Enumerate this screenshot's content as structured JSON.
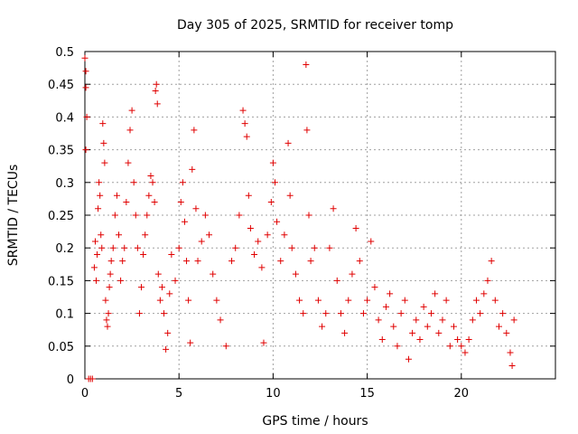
{
  "chart_data": {
    "type": "scatter",
    "title": "Day 305 of 2025, SRMTID for receiver tomp",
    "xlabel": "GPS time / hours",
    "ylabel": "SRMTID / TECUs",
    "xlim": [
      0,
      25
    ],
    "ylim": [
      0,
      0.5
    ],
    "xticks": [
      0,
      5,
      10,
      15,
      20
    ],
    "yticks": [
      0,
      0.05,
      0.1,
      0.15,
      0.2,
      0.25,
      0.3,
      0.35,
      0.4,
      0.45,
      0.5
    ],
    "xtick_labels": [
      "0",
      "5",
      "10",
      "15",
      "20"
    ],
    "ytick_labels": [
      "0",
      "0.05",
      "0.1",
      "0.15",
      "0.2",
      "0.25",
      "0.3",
      "0.35",
      "0.4",
      "0.45",
      "0.5"
    ],
    "grid": true,
    "marker": "+",
    "marker_color": "#e00000",
    "series": [
      {
        "name": "SRMTID",
        "points": [
          [
            0.0,
            0.49
          ],
          [
            0.05,
            0.47
          ],
          [
            0.05,
            0.445
          ],
          [
            0.1,
            0.4
          ],
          [
            0.05,
            0.35
          ],
          [
            0.2,
            0.0
          ],
          [
            0.3,
            0.0
          ],
          [
            0.4,
            0.0
          ],
          [
            0.5,
            0.17
          ],
          [
            0.55,
            0.21
          ],
          [
            0.6,
            0.15
          ],
          [
            0.65,
            0.19
          ],
          [
            0.7,
            0.26
          ],
          [
            0.75,
            0.3
          ],
          [
            0.8,
            0.28
          ],
          [
            0.85,
            0.22
          ],
          [
            0.9,
            0.2
          ],
          [
            0.95,
            0.39
          ],
          [
            1.0,
            0.36
          ],
          [
            1.05,
            0.33
          ],
          [
            1.1,
            0.12
          ],
          [
            1.15,
            0.09
          ],
          [
            1.2,
            0.08
          ],
          [
            1.25,
            0.1
          ],
          [
            1.3,
            0.14
          ],
          [
            1.35,
            0.16
          ],
          [
            1.4,
            0.18
          ],
          [
            1.5,
            0.2
          ],
          [
            1.6,
            0.25
          ],
          [
            1.7,
            0.28
          ],
          [
            1.8,
            0.22
          ],
          [
            1.9,
            0.15
          ],
          [
            2.0,
            0.18
          ],
          [
            2.1,
            0.2
          ],
          [
            2.2,
            0.27
          ],
          [
            2.3,
            0.33
          ],
          [
            2.4,
            0.38
          ],
          [
            2.5,
            0.41
          ],
          [
            2.6,
            0.3
          ],
          [
            2.7,
            0.25
          ],
          [
            2.8,
            0.2
          ],
          [
            2.9,
            0.1
          ],
          [
            3.0,
            0.14
          ],
          [
            3.1,
            0.19
          ],
          [
            3.2,
            0.22
          ],
          [
            3.3,
            0.25
          ],
          [
            3.4,
            0.28
          ],
          [
            3.5,
            0.31
          ],
          [
            3.6,
            0.3
          ],
          [
            3.7,
            0.27
          ],
          [
            3.75,
            0.44
          ],
          [
            3.8,
            0.45
          ],
          [
            3.85,
            0.42
          ],
          [
            3.9,
            0.16
          ],
          [
            4.0,
            0.12
          ],
          [
            4.1,
            0.14
          ],
          [
            4.2,
            0.1
          ],
          [
            4.3,
            0.045
          ],
          [
            4.4,
            0.07
          ],
          [
            4.5,
            0.13
          ],
          [
            4.6,
            0.19
          ],
          [
            4.8,
            0.15
          ],
          [
            5.0,
            0.2
          ],
          [
            5.1,
            0.27
          ],
          [
            5.2,
            0.3
          ],
          [
            5.3,
            0.24
          ],
          [
            5.4,
            0.18
          ],
          [
            5.5,
            0.12
          ],
          [
            5.6,
            0.055
          ],
          [
            5.7,
            0.32
          ],
          [
            5.8,
            0.38
          ],
          [
            5.9,
            0.26
          ],
          [
            6.0,
            0.18
          ],
          [
            6.2,
            0.21
          ],
          [
            6.4,
            0.25
          ],
          [
            6.6,
            0.22
          ],
          [
            6.8,
            0.16
          ],
          [
            7.0,
            0.12
          ],
          [
            7.2,
            0.09
          ],
          [
            7.5,
            0.05
          ],
          [
            7.8,
            0.18
          ],
          [
            8.0,
            0.2
          ],
          [
            8.2,
            0.25
          ],
          [
            8.4,
            0.41
          ],
          [
            8.5,
            0.39
          ],
          [
            8.6,
            0.37
          ],
          [
            8.7,
            0.28
          ],
          [
            8.8,
            0.23
          ],
          [
            9.0,
            0.19
          ],
          [
            9.2,
            0.21
          ],
          [
            9.4,
            0.17
          ],
          [
            9.5,
            0.055
          ],
          [
            9.7,
            0.22
          ],
          [
            9.9,
            0.27
          ],
          [
            10.0,
            0.33
          ],
          [
            10.1,
            0.3
          ],
          [
            10.2,
            0.24
          ],
          [
            10.4,
            0.18
          ],
          [
            10.6,
            0.22
          ],
          [
            10.8,
            0.36
          ],
          [
            10.9,
            0.28
          ],
          [
            11.0,
            0.2
          ],
          [
            11.2,
            0.16
          ],
          [
            11.4,
            0.12
          ],
          [
            11.6,
            0.1
          ],
          [
            11.75,
            0.48
          ],
          [
            11.8,
            0.38
          ],
          [
            11.9,
            0.25
          ],
          [
            12.0,
            0.18
          ],
          [
            12.2,
            0.2
          ],
          [
            12.4,
            0.12
          ],
          [
            12.6,
            0.08
          ],
          [
            12.8,
            0.1
          ],
          [
            13.0,
            0.2
          ],
          [
            13.2,
            0.26
          ],
          [
            13.4,
            0.15
          ],
          [
            13.6,
            0.1
          ],
          [
            13.8,
            0.07
          ],
          [
            14.0,
            0.12
          ],
          [
            14.2,
            0.16
          ],
          [
            14.4,
            0.23
          ],
          [
            14.6,
            0.18
          ],
          [
            14.8,
            0.1
          ],
          [
            15.0,
            0.12
          ],
          [
            15.2,
            0.21
          ],
          [
            15.4,
            0.14
          ],
          [
            15.6,
            0.09
          ],
          [
            15.8,
            0.06
          ],
          [
            16.0,
            0.11
          ],
          [
            16.2,
            0.13
          ],
          [
            16.4,
            0.08
          ],
          [
            16.6,
            0.05
          ],
          [
            16.8,
            0.1
          ],
          [
            17.0,
            0.12
          ],
          [
            17.2,
            0.03
          ],
          [
            17.4,
            0.07
          ],
          [
            17.6,
            0.09
          ],
          [
            17.8,
            0.06
          ],
          [
            18.0,
            0.11
          ],
          [
            18.2,
            0.08
          ],
          [
            18.4,
            0.1
          ],
          [
            18.6,
            0.13
          ],
          [
            18.8,
            0.07
          ],
          [
            19.0,
            0.09
          ],
          [
            19.2,
            0.12
          ],
          [
            19.4,
            0.05
          ],
          [
            19.6,
            0.08
          ],
          [
            19.8,
            0.06
          ],
          [
            20.0,
            0.05
          ],
          [
            20.2,
            0.04
          ],
          [
            20.4,
            0.06
          ],
          [
            20.6,
            0.09
          ],
          [
            20.8,
            0.12
          ],
          [
            21.0,
            0.1
          ],
          [
            21.2,
            0.13
          ],
          [
            21.4,
            0.15
          ],
          [
            21.6,
            0.18
          ],
          [
            21.8,
            0.12
          ],
          [
            22.0,
            0.08
          ],
          [
            22.2,
            0.1
          ],
          [
            22.4,
            0.07
          ],
          [
            22.6,
            0.04
          ],
          [
            22.7,
            0.02
          ],
          [
            22.8,
            0.09
          ]
        ]
      }
    ]
  }
}
